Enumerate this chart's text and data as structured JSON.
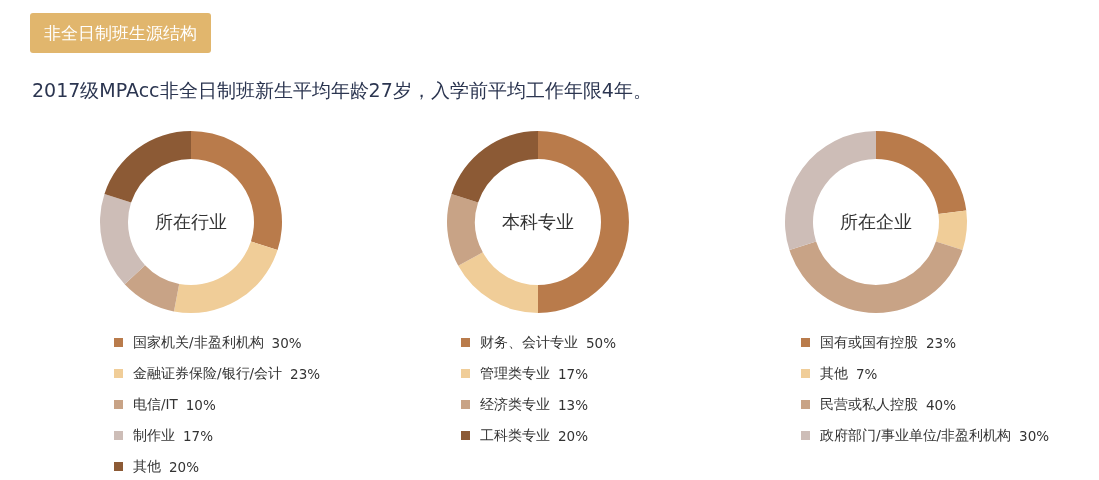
{
  "chart_data": [
    {
      "type": "donut",
      "title": "所在行业",
      "annotations": [
        "非全日制班生源结构",
        "2017级MPAcc非全日制班新生平均年龄27岁，入学前平均工作年限4年。"
      ],
      "categories": [
        "国家机关/非盈利机构",
        "金融证券保险/银行/会计",
        "电信/IT",
        "制作业",
        "其他"
      ],
      "values": [
        30,
        23,
        10,
        17,
        20
      ],
      "value_labels": [
        "30%",
        "23%",
        "10%",
        "17%",
        "20%"
      ],
      "colors": [
        "#b97b4b",
        "#f0cd98",
        "#c8a386",
        "#cdbdb7",
        "#8c5a35"
      ],
      "legend": "bottom"
    },
    {
      "type": "donut",
      "title": "本科专业",
      "categories": [
        "财务、会计专业",
        "管理类专业",
        "经济类专业",
        "工科类专业"
      ],
      "values": [
        50,
        17,
        13,
        20
      ],
      "value_labels": [
        "50%",
        "17%",
        "13%",
        "20%"
      ],
      "colors": [
        "#b97b4b",
        "#f0cd98",
        "#c8a386",
        "#8c5a35"
      ],
      "legend": "bottom"
    },
    {
      "type": "donut",
      "title": "所在企业",
      "categories": [
        "国有或国有控股",
        "其他",
        "民营或私人控股",
        "政府部门/事业单位/非盈利机构"
      ],
      "values": [
        23,
        7,
        40,
        30
      ],
      "value_labels": [
        "23%",
        "7%",
        "40%",
        "30%"
      ],
      "colors": [
        "#b97b4b",
        "#f0cd98",
        "#c8a386",
        "#cdbdb7"
      ],
      "legend": "bottom"
    }
  ]
}
